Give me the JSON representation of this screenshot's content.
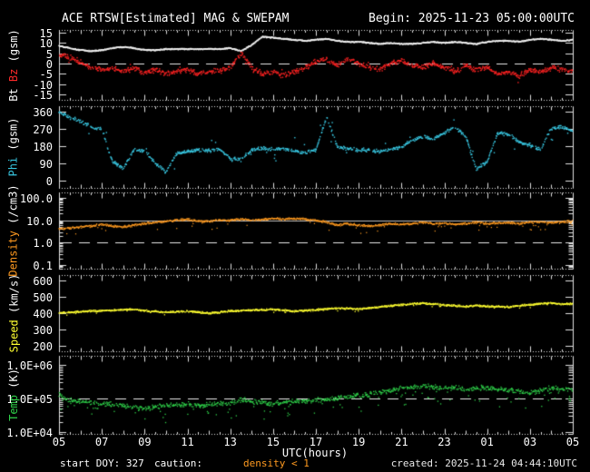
{
  "title": "ACE RTSW[Estimated] MAG & SWEPAM",
  "begin": "Begin: 2025-11-23 05:00:00UTC",
  "footer": {
    "start_doy": "start DOY: 327",
    "caution_label": "caution:",
    "caution_value": "density < 1",
    "created": "created: 2025-11-24 04:44:10UTC"
  },
  "chart_data": {
    "type": "scatter",
    "title": "ACE RTSW[Estimated] MAG & SWEPAM",
    "x": {
      "label": "UTC(hours)",
      "range_hours": [
        5,
        29
      ],
      "tick_hours": [
        5,
        7,
        9,
        11,
        13,
        15,
        17,
        19,
        21,
        23,
        25,
        27,
        29
      ],
      "tick_labels": [
        "05",
        "07",
        "09",
        "11",
        "13",
        "15",
        "17",
        "19",
        "21",
        "23",
        "01",
        "03",
        "05"
      ],
      "minor_step_hours": 0.5
    },
    "x_hours": [
      5,
      5.5,
      6,
      6.5,
      7,
      7.5,
      8,
      8.5,
      9,
      9.5,
      10,
      10.5,
      11,
      11.5,
      12,
      12.5,
      13,
      13.5,
      14,
      14.5,
      15,
      15.5,
      16,
      16.5,
      17,
      17.5,
      18,
      18.5,
      19,
      19.5,
      20,
      20.5,
      21,
      21.5,
      22,
      22.5,
      23,
      23.5,
      24,
      24.5,
      25,
      25.5,
      26,
      26.5,
      27,
      27.5,
      28,
      28.5,
      29
    ],
    "panels": [
      {
        "id": "mag",
        "ylabel_parts": [
          {
            "text": "Bt ",
            "color": "#ffffff"
          },
          {
            "text": "Bz",
            "color": "#ff2a2a"
          },
          {
            "text": " (gsm)",
            "color": "#ffffff"
          }
        ],
        "scale": "linear",
        "domain": [
          -17.6,
          16.3
        ],
        "ticks": [
          {
            "v": 15,
            "label": "15"
          },
          {
            "v": 10,
            "label": "10"
          },
          {
            "v": 5,
            "label": "5"
          },
          {
            "v": 0,
            "label": "0"
          },
          {
            "v": -5,
            "label": "-5"
          },
          {
            "v": -10,
            "label": "-10"
          },
          {
            "v": -15,
            "label": "-15"
          }
        ],
        "ref_lines": [
          {
            "v": 0,
            "style": "dashed",
            "color": "#e8e8e8"
          }
        ],
        "series": [
          {
            "name": "Bt",
            "color": "#f2f2f2",
            "y": [
              8.5,
              7.5,
              6.5,
              6.0,
              6.5,
              7.5,
              8.0,
              7.5,
              6.5,
              6.5,
              7.0,
              7.0,
              7.0,
              7.0,
              7.0,
              7.0,
              7.5,
              6.0,
              9.0,
              13.0,
              12.5,
              12.0,
              11.5,
              11.0,
              11.5,
              12.0,
              11.0,
              10.5,
              10.5,
              10.0,
              9.5,
              10.0,
              9.5,
              9.5,
              10.0,
              10.5,
              10.0,
              10.5,
              10.0,
              9.5,
              10.5,
              11.0,
              11.0,
              10.5,
              11.5,
              12.0,
              11.5,
              11.0,
              11.5
            ],
            "noise": {
              "jitter": 0.35,
              "skip": 0.04,
              "size": 1.4,
              "outlier_p": 0,
              "outlier_amp": 0,
              "outlier_dir": "both"
            }
          },
          {
            "name": "Bz",
            "color": "#ff2222",
            "y": [
              4.5,
              3.0,
              1.0,
              -2.0,
              -3.0,
              -2.0,
              -4.0,
              -2.0,
              -4.5,
              -3.0,
              -5.0,
              -4.0,
              -3.0,
              -5.0,
              -4.0,
              -3.5,
              -2.0,
              5.0,
              -2.0,
              -5.0,
              -4.0,
              -6.0,
              -4.0,
              -2.0,
              1.0,
              2.0,
              -1.0,
              2.0,
              0.0,
              -2.0,
              -3.0,
              0.0,
              1.5,
              -1.0,
              -2.0,
              0.0,
              -2.0,
              -4.0,
              -1.0,
              -3.0,
              -2.0,
              -5.0,
              -4.0,
              -6.0,
              -3.0,
              -4.0,
              -2.0,
              -3.0,
              -3.5
            ],
            "noise": {
              "jitter": 1.5,
              "skip": 0.3,
              "size": 1.4,
              "outlier_p": 0.05,
              "outlier_amp": 2.5,
              "outlier_dir": "both"
            }
          }
        ]
      },
      {
        "id": "phi",
        "ylabel_parts": [
          {
            "text": "Phi",
            "color": "#38c6e0"
          },
          {
            "text": " (gsm)",
            "color": "#ffffff"
          }
        ],
        "scale": "linear",
        "domain": [
          -38,
          388
        ],
        "ticks": [
          {
            "v": 360,
            "label": "360"
          },
          {
            "v": 270,
            "label": "270"
          },
          {
            "v": 180,
            "label": "180"
          },
          {
            "v": 90,
            "label": "90"
          },
          {
            "v": 0,
            "label": "0"
          }
        ],
        "ref_lines": [],
        "series": [
          {
            "name": "Phi",
            "color": "#38c6e0",
            "y": [
              355,
              330,
              310,
              280,
              270,
              100,
              60,
              160,
              155,
              90,
              45,
              140,
              150,
              160,
              155,
              165,
              115,
              110,
              160,
              170,
              160,
              165,
              155,
              145,
              160,
              330,
              180,
              165,
              160,
              160,
              150,
              165,
              175,
              210,
              230,
              215,
              250,
              280,
              230,
              60,
              100,
              250,
              240,
              200,
              185,
              160,
              270,
              280,
              260
            ],
            "noise": {
              "jitter": 11,
              "skip": 0.35,
              "size": 1.4,
              "outlier_p": 0.05,
              "outlier_amp": 70,
              "outlier_dir": "both"
            }
          }
        ]
      },
      {
        "id": "density",
        "ylabel_parts": [
          {
            "text": "Density",
            "color": "#ff9a20"
          },
          {
            "text": " (/cm3)",
            "color": "#ffffff"
          }
        ],
        "scale": "log",
        "domain": [
          -1.162,
          2.243
        ],
        "ticks": [
          {
            "v": 100,
            "label": "100.0"
          },
          {
            "v": 10,
            "label": "10.0"
          },
          {
            "v": 1,
            "label": "1.0"
          },
          {
            "v": 0.1,
            "label": "0.1"
          }
        ],
        "ref_lines": [
          {
            "v": 1,
            "style": "dashed",
            "color": "#e8e8e8"
          },
          {
            "v": 10,
            "style": "solid",
            "color": "#bbbbbb"
          }
        ],
        "series": [
          {
            "name": "Density",
            "color": "#ff9a20",
            "y": [
              4.0,
              4.5,
              5.0,
              5.5,
              6.5,
              5.5,
              5.0,
              6.0,
              7.0,
              8.0,
              9.0,
              10.0,
              11.0,
              9.0,
              9.0,
              10.0,
              10.0,
              11.0,
              10.0,
              11.0,
              12.0,
              11.0,
              12.0,
              11.0,
              10.0,
              8.0,
              6.0,
              7.0,
              6.0,
              5.5,
              6.0,
              7.0,
              6.5,
              7.0,
              8.0,
              7.0,
              7.5,
              6.5,
              7.0,
              8.0,
              7.0,
              7.5,
              8.0,
              7.0,
              8.0,
              8.5,
              8.0,
              8.5,
              9.0
            ],
            "noise": {
              "jitter": 0.06,
              "skip": 0.12,
              "size": 1.2,
              "outlier_p": 0.04,
              "outlier_amp": 0.35,
              "outlier_dir": "down"
            }
          }
        ]
      },
      {
        "id": "speed",
        "ylabel_parts": [
          {
            "text": "Speed",
            "color": "#ffff30"
          },
          {
            "text": " (km/s)",
            "color": "#ffffff"
          }
        ],
        "scale": "linear",
        "domain": [
          167,
          633
        ],
        "ticks": [
          {
            "v": 600,
            "label": "600"
          },
          {
            "v": 500,
            "label": "500"
          },
          {
            "v": 400,
            "label": "400"
          },
          {
            "v": 300,
            "label": "300"
          },
          {
            "v": 200,
            "label": "200"
          }
        ],
        "ref_lines": [],
        "series": [
          {
            "name": "Speed",
            "color": "#ffff30",
            "y": [
              400,
              405,
              410,
              412,
              415,
              418,
              420,
              422,
              415,
              410,
              405,
              408,
              412,
              405,
              400,
              405,
              412,
              415,
              418,
              420,
              422,
              418,
              412,
              415,
              420,
              425,
              430,
              428,
              425,
              430,
              438,
              445,
              450,
              455,
              460,
              455,
              450,
              445,
              440,
              445,
              442,
              440,
              438,
              445,
              452,
              458,
              462,
              455,
              458
            ],
            "noise": {
              "jitter": 7,
              "skip": 0.15,
              "size": 1.3,
              "outlier_p": 0.02,
              "outlier_amp": 20,
              "outlier_dir": "down"
            }
          }
        ]
      },
      {
        "id": "temp",
        "ylabel_parts": [
          {
            "text": "Temp",
            "color": "#2fd24a"
          },
          {
            "text": " (K)",
            "color": "#ffffff"
          }
        ],
        "scale": "log",
        "domain": [
          3.946,
          6.27
        ],
        "ticks": [
          {
            "v": 1000000,
            "label": "1.0E+06"
          },
          {
            "v": 100000,
            "label": "1.0E+05"
          },
          {
            "v": 10000,
            "label": "1.0E+04"
          }
        ],
        "ref_lines": [
          {
            "v": 100000,
            "style": "dashed",
            "color": "#e8e8e8"
          }
        ],
        "series": [
          {
            "name": "Temp",
            "color": "#2fd24a",
            "y": [
              130000,
              90000,
              80000,
              75000,
              70000,
              65000,
              60000,
              55000,
              50000,
              55000,
              60000,
              65000,
              70000,
              60000,
              65000,
              70000,
              75000,
              90000,
              80000,
              75000,
              70000,
              75000,
              80000,
              85000,
              90000,
              95000,
              100000,
              110000,
              120000,
              130000,
              150000,
              180000,
              200000,
              220000,
              230000,
              220000,
              200000,
              210000,
              190000,
              200000,
              210000,
              190000,
              180000,
              160000,
              140000,
              180000,
              200000,
              190000,
              180000
            ],
            "noise": {
              "jitter": 0.09,
              "skip": 0.3,
              "size": 1.3,
              "outlier_p": 0.12,
              "outlier_amp": 0.5,
              "outlier_dir": "down"
            }
          }
        ]
      }
    ]
  }
}
